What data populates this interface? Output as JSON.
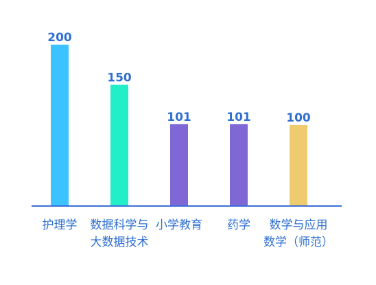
{
  "chart_data": {
    "type": "bar",
    "categories": [
      [
        "护理学"
      ],
      [
        "数据科学与",
        "大数据技术"
      ],
      [
        "小学教育"
      ],
      [
        "药学"
      ],
      [
        "数学与应用",
        "数学（师范）"
      ]
    ],
    "values": [
      200,
      150,
      101,
      101,
      100
    ],
    "bar_colors": [
      "#3cc3ff",
      "#22efc8",
      "#7f67d6",
      "#7f67d6",
      "#eecb6e"
    ],
    "axis_color": "#3a6fd8",
    "value_label_color": "#2f6fcf",
    "category_label_color": "#2f6fcf",
    "ylim": [
      0,
      200
    ],
    "title": "",
    "xlabel": "",
    "ylabel": "",
    "grid": false,
    "legend": "none"
  }
}
